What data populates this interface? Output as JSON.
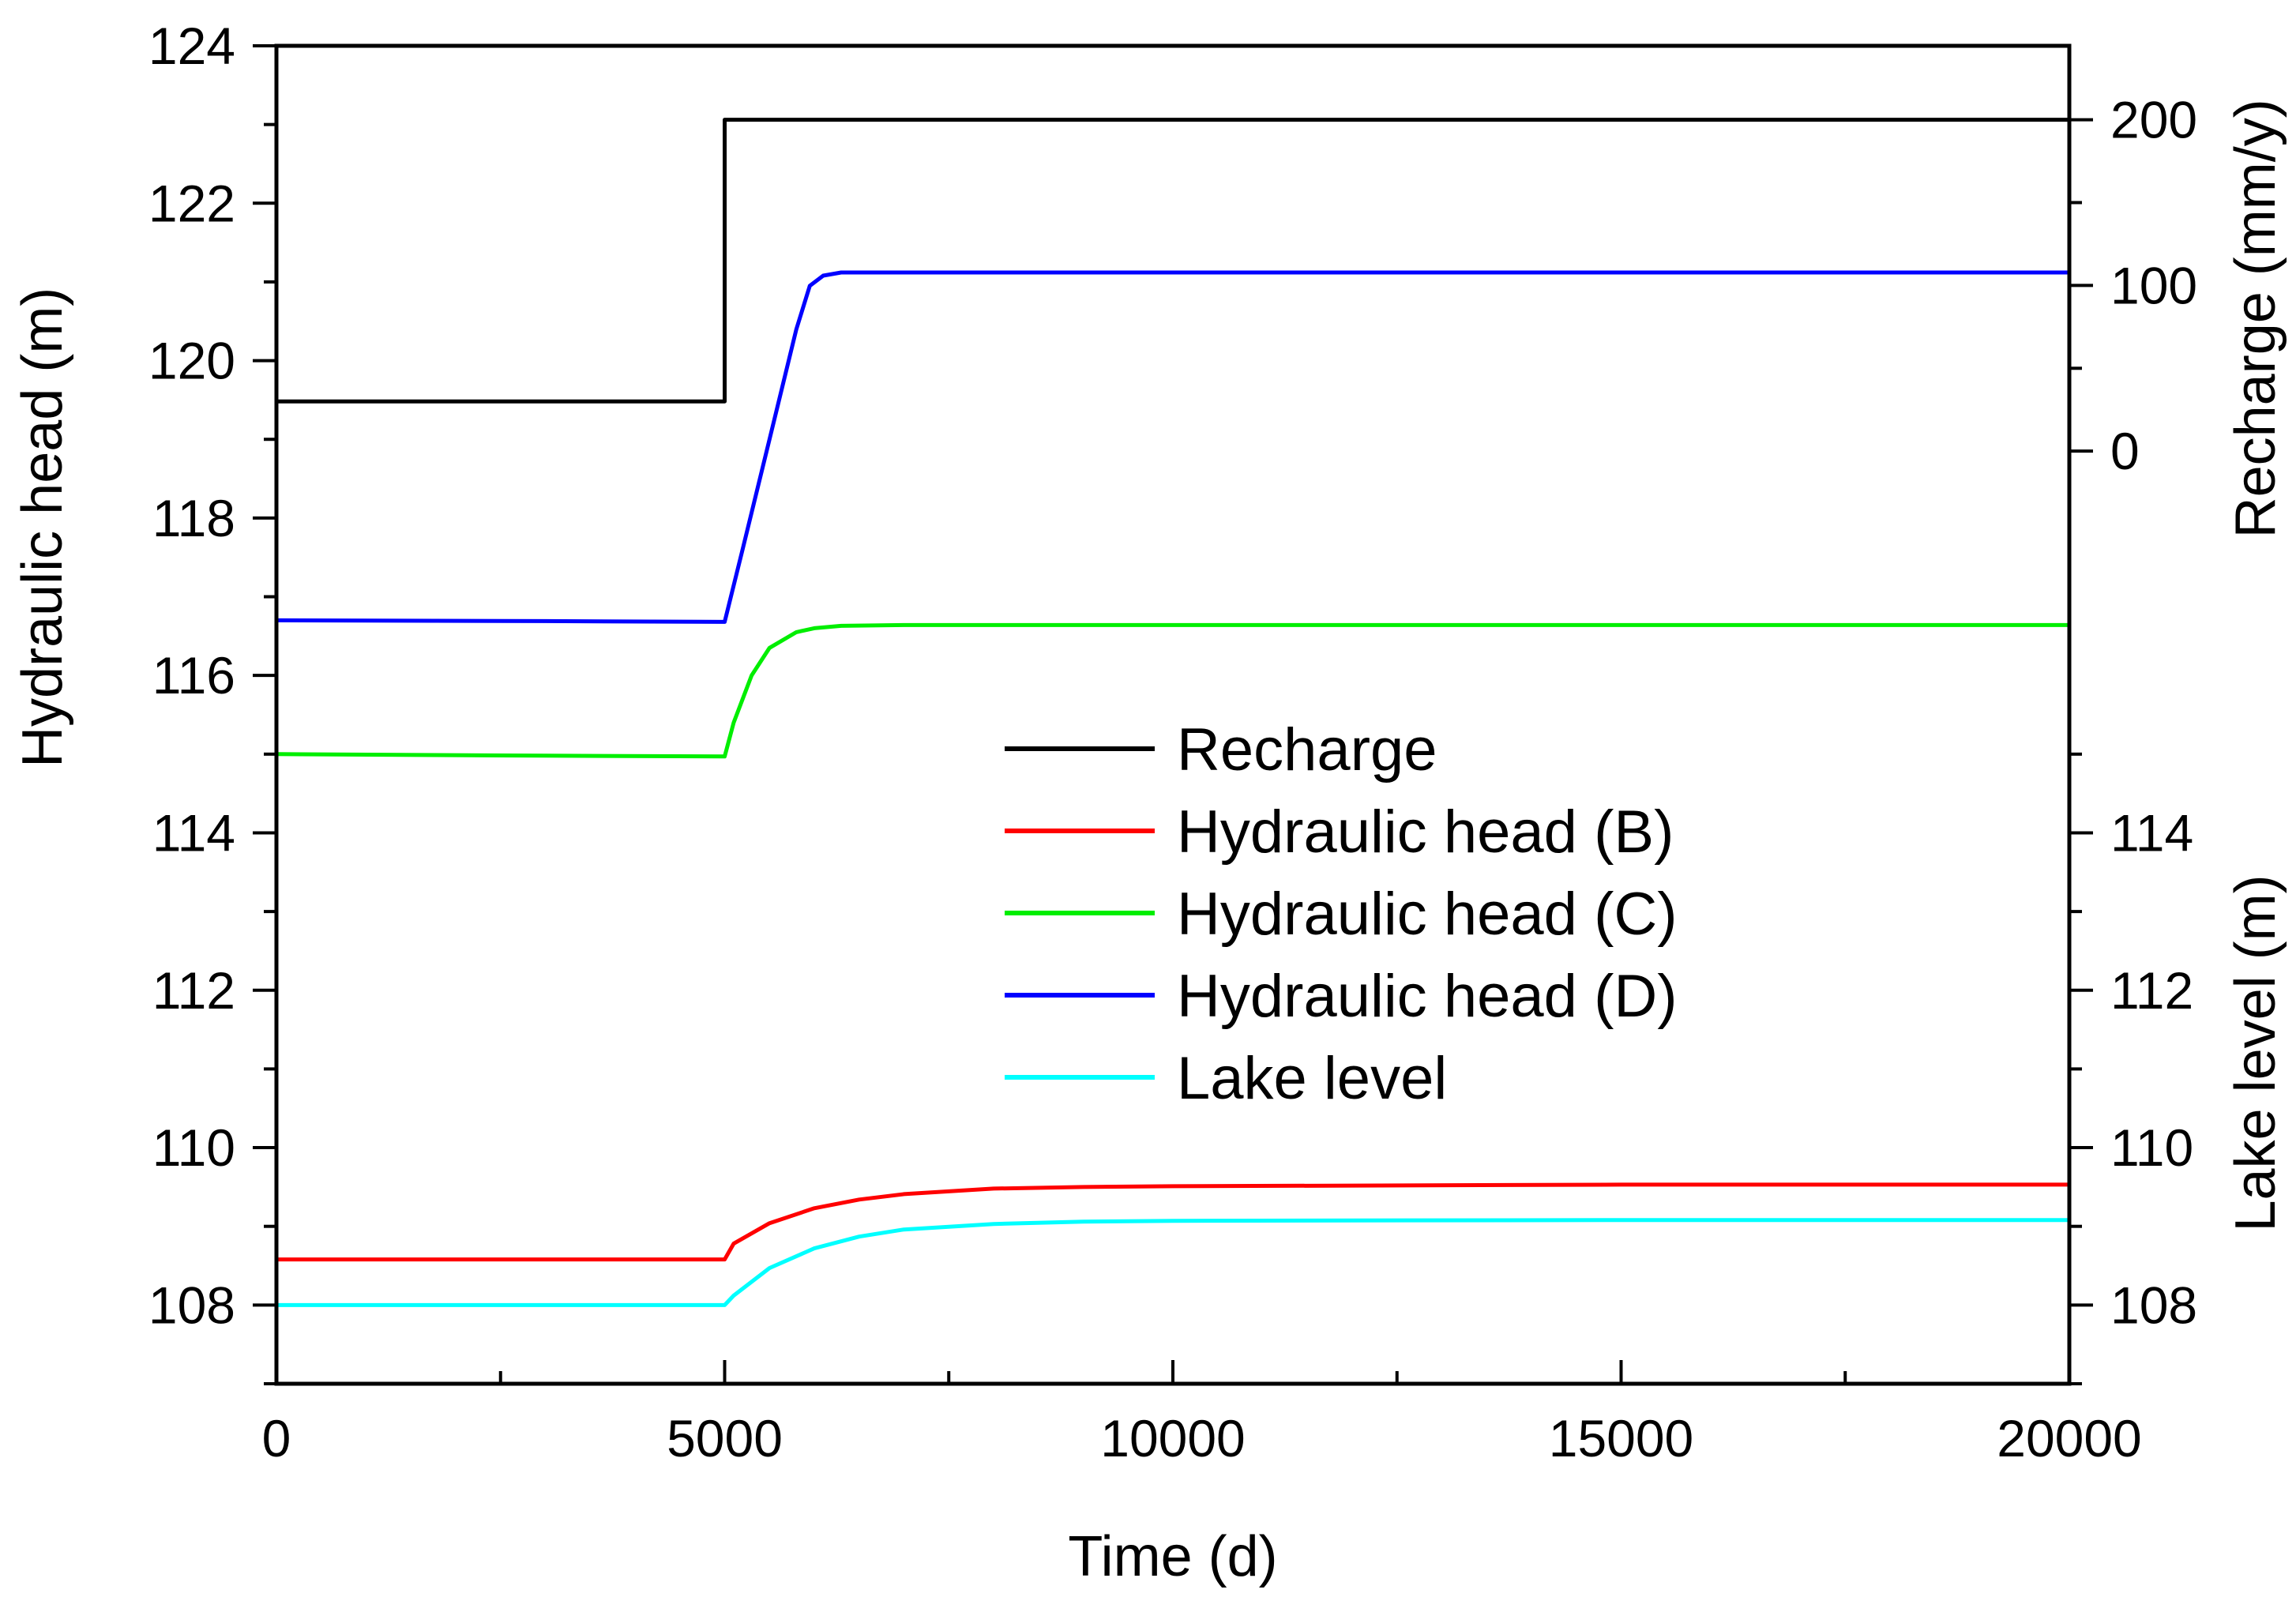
{
  "chart_data": {
    "type": "line",
    "x_axis": {
      "label": "Time (d)",
      "range": [
        0,
        20000
      ],
      "ticks": [
        0,
        5000,
        10000,
        15000,
        20000
      ],
      "tick_labels": [
        "0",
        "5000",
        "10000",
        "15000",
        "20000"
      ],
      "minor_step": 2500
    },
    "y_left": {
      "label": "Hydraulic head (m)",
      "range": [
        107,
        124
      ],
      "ticks": [
        108,
        110,
        112,
        114,
        116,
        118,
        120,
        122,
        124
      ],
      "tick_labels": [
        "108",
        "110",
        "112",
        "114",
        "116",
        "118",
        "120",
        "122",
        "124"
      ],
      "minor_step": 1
    },
    "y_right_top": {
      "label": "Recharge (mm/y)",
      "ticks": [
        0,
        100,
        200
      ],
      "tick_labels": [
        "0",
        "100",
        "200"
      ],
      "minor_step": 50,
      "units_per_left_unit": 47.5,
      "zero_at_left": 118.85
    },
    "y_right_bottom": {
      "label": "Lake level (m)",
      "ticks": [
        108,
        110,
        112,
        114
      ],
      "tick_labels": [
        "108",
        "110",
        "112",
        "114"
      ],
      "minor_step": 1,
      "range": [
        107,
        115
      ]
    },
    "series": [
      {
        "name": "Recharge",
        "color": "#000000",
        "axis": "right_top",
        "x": [
          0,
          5000,
          5000,
          20000
        ],
        "y": [
          30,
          30,
          200,
          200
        ]
      },
      {
        "name": "Hydraulic head (B)",
        "color": "#ff0000",
        "axis": "left",
        "x": [
          0,
          5000,
          5100,
          5500,
          6000,
          6500,
          7000,
          8000,
          9000,
          10000,
          15000,
          20000
        ],
        "y": [
          108.58,
          108.58,
          108.78,
          109.04,
          109.23,
          109.34,
          109.41,
          109.48,
          109.5,
          109.51,
          109.53,
          109.53
        ]
      },
      {
        "name": "Hydraulic head (C)",
        "color": "#00ee00",
        "axis": "left",
        "x": [
          0,
          3000,
          5000,
          5100,
          5300,
          5500,
          5800,
          6000,
          6300,
          7000,
          10000,
          20000
        ],
        "y": [
          115.0,
          114.98,
          114.97,
          115.4,
          116.0,
          116.35,
          116.55,
          116.6,
          116.63,
          116.64,
          116.64,
          116.64
        ]
      },
      {
        "name": "Hydraulic head (D)",
        "color": "#0000ff",
        "axis": "left",
        "x": [
          0,
          3000,
          5000,
          5200,
          5500,
          5800,
          5950,
          6100,
          6300,
          7000,
          10000,
          20000
        ],
        "y": [
          116.7,
          116.69,
          116.68,
          117.6,
          119.0,
          120.4,
          120.95,
          121.08,
          121.12,
          121.12,
          121.12,
          121.12
        ]
      },
      {
        "name": "Lake level",
        "color": "#00ffff",
        "axis": "right_bottom",
        "x": [
          0,
          5000,
          5100,
          5500,
          6000,
          6500,
          7000,
          8000,
          9000,
          10000,
          15000,
          20000
        ],
        "y": [
          108.0,
          108.0,
          108.12,
          108.47,
          108.72,
          108.87,
          108.96,
          109.03,
          109.06,
          109.07,
          109.08,
          109.08
        ]
      }
    ],
    "legend": {
      "position": "center",
      "entries": [
        "Recharge",
        "Hydraulic head (B)",
        "Hydraulic head (C)",
        "Hydraulic head (D)",
        "Lake level"
      ]
    },
    "grid": false
  }
}
